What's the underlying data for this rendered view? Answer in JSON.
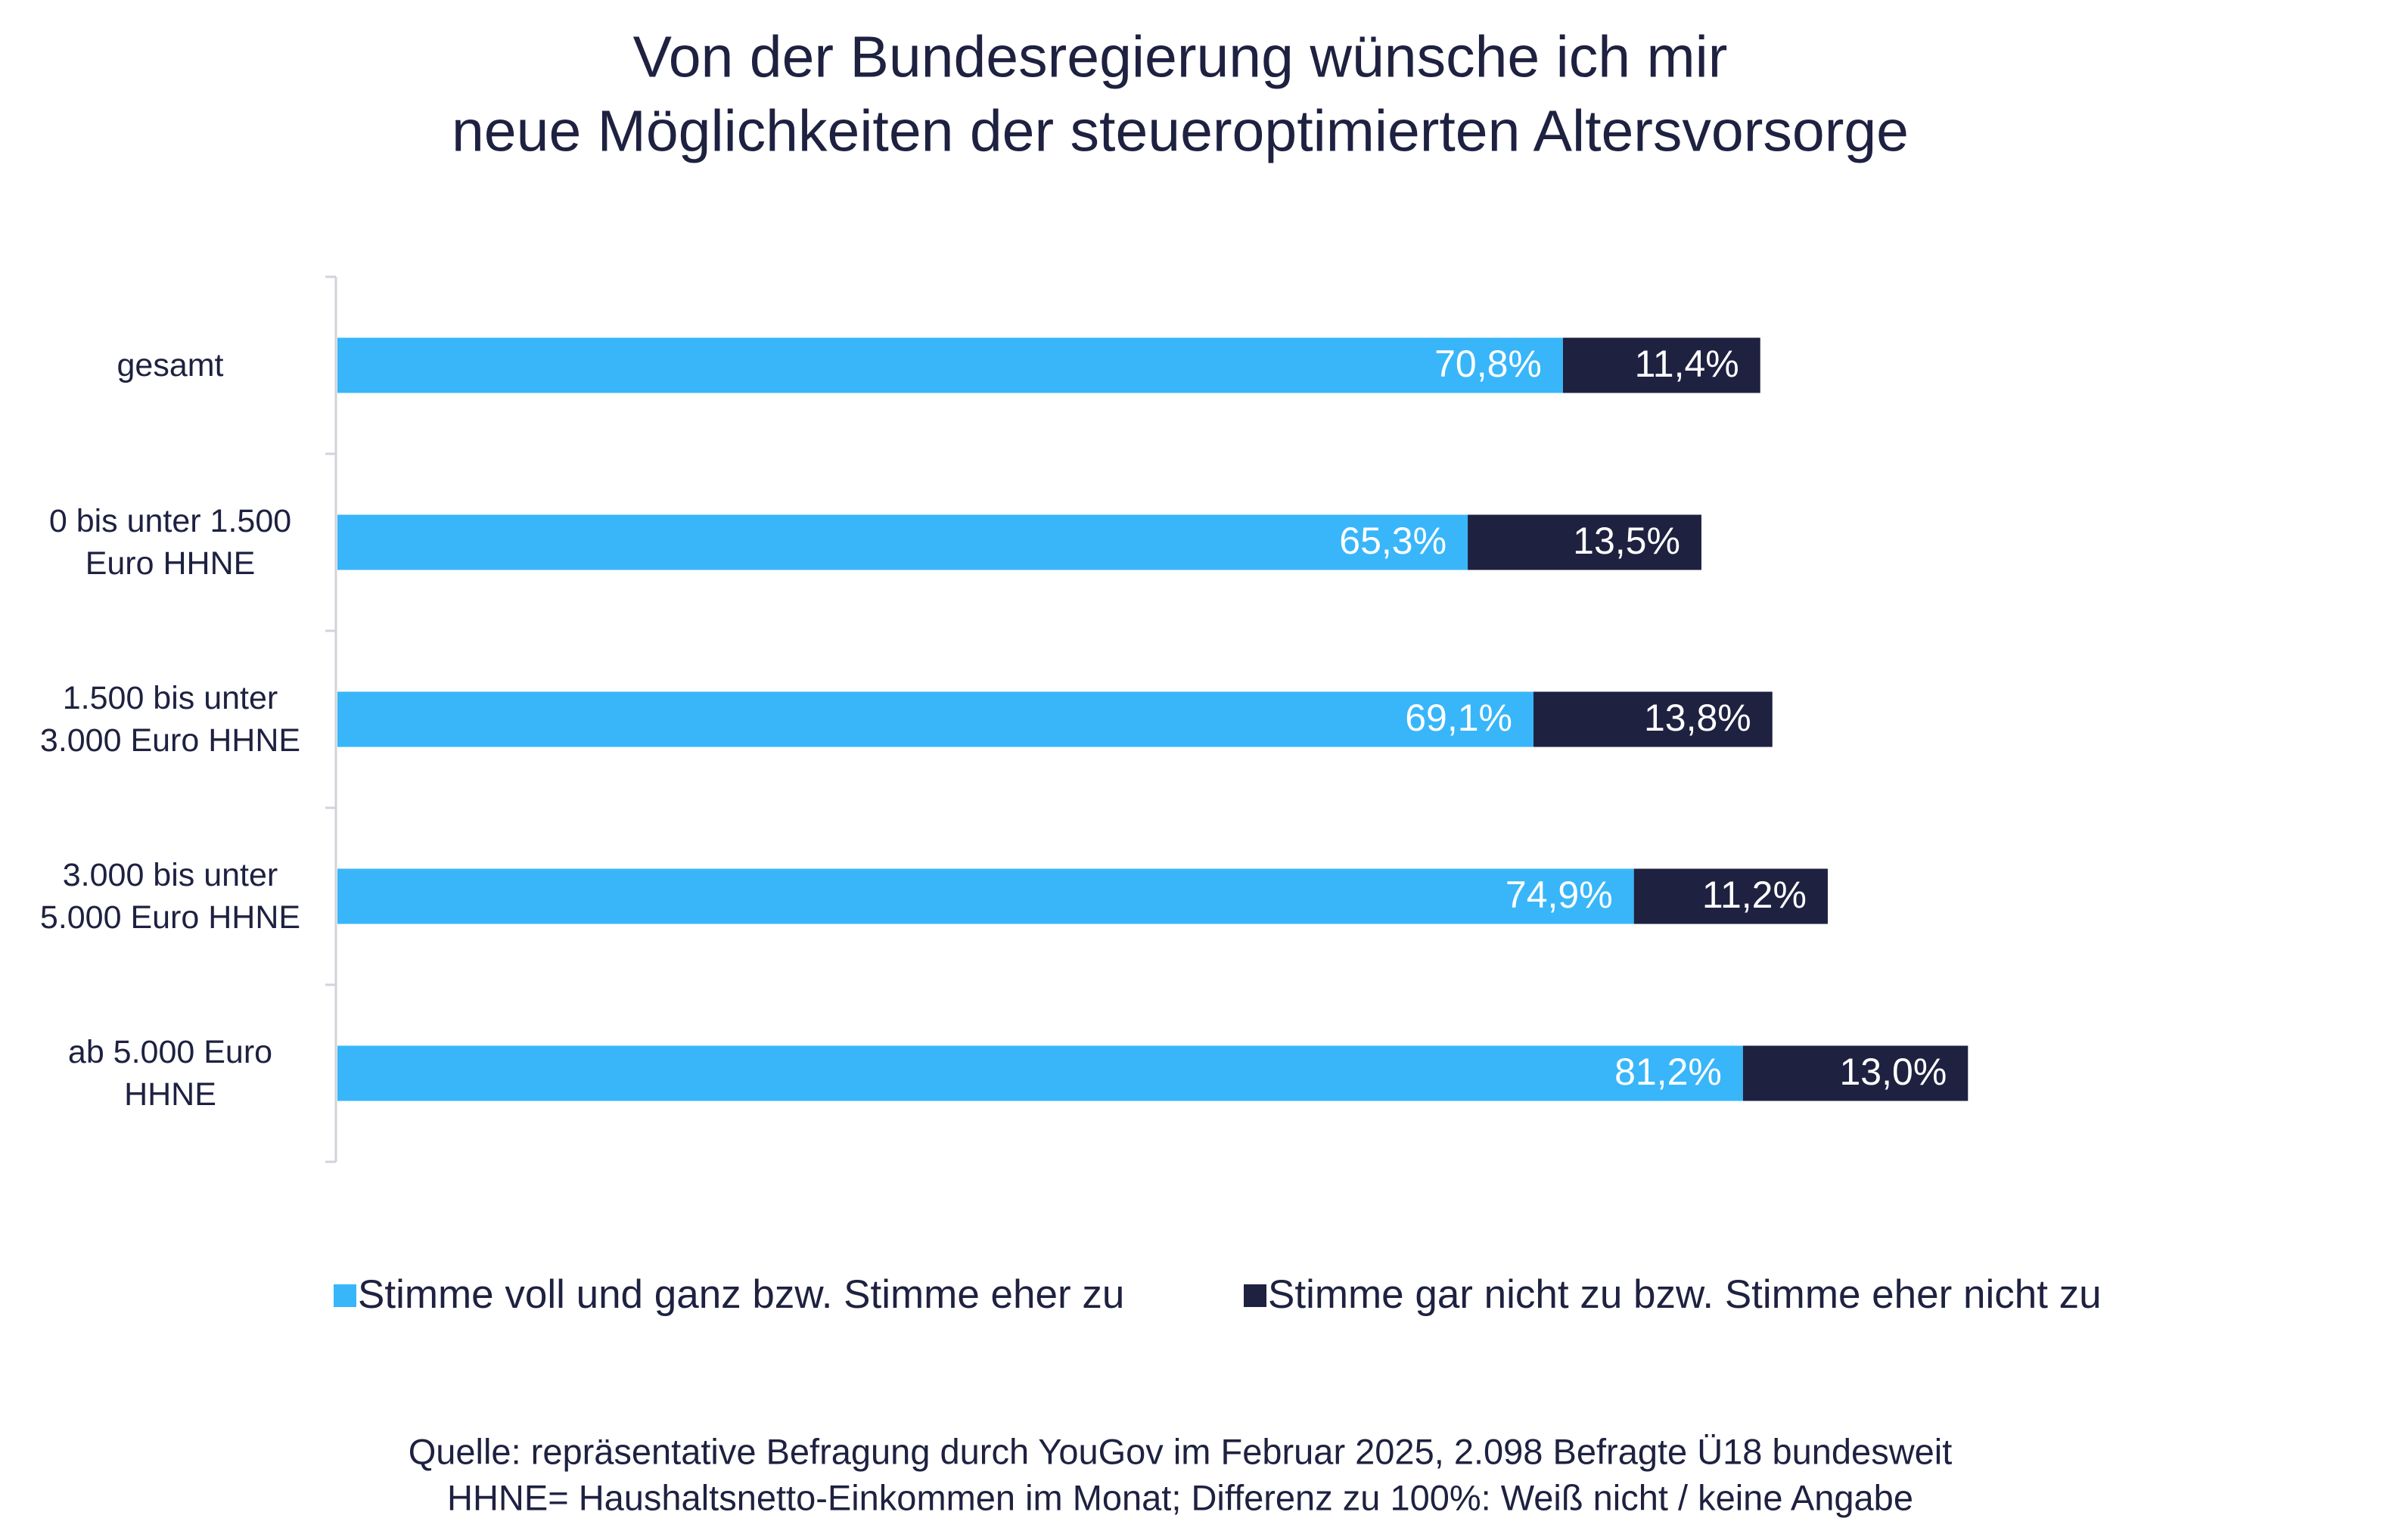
{
  "chart_data": {
    "type": "stacked-bar-horizontal",
    "title": [
      "Von der Bundesregierung wünsche ich mir",
      "neue Möglichkeiten der steueroptimierten Altersvorsorge"
    ],
    "categories": [
      "gesamt",
      "0 bis unter 1.500 Euro HHNE",
      "1.500 bis unter 3.000 Euro HHNE",
      "3.000 bis unter 5.000 Euro HHNE",
      "ab 5.000 Euro HHNE"
    ],
    "series": [
      {
        "name": "Stimme voll und ganz bzw. Stimme eher zu",
        "color": "#38b6f9",
        "values": [
          70.8,
          65.3,
          69.1,
          74.9,
          81.2
        ],
        "value_labels": [
          "70,8%",
          "65,3%",
          "69,1%",
          "74,9%",
          "81,2%"
        ]
      },
      {
        "name": "Stimme gar nicht zu bzw. Stimme eher nicht zu",
        "color": "#1e2140",
        "values": [
          11.4,
          13.5,
          13.8,
          11.2,
          13.0
        ],
        "value_labels": [
          "11,4%",
          "13,5%",
          "13,8%",
          "11,2%",
          "13,0%"
        ]
      }
    ],
    "xlim": [
      0,
      100
    ],
    "notes": [
      "Quelle: repräsentative Befragung durch YouGov im Februar 2025, 2.098 Befragte Ü18 bundesweit",
      "HHNE= Haushaltsnetto-Einkommen im Monat; Differenz zu 100%: Weiß nicht / keine Angabe"
    ]
  }
}
